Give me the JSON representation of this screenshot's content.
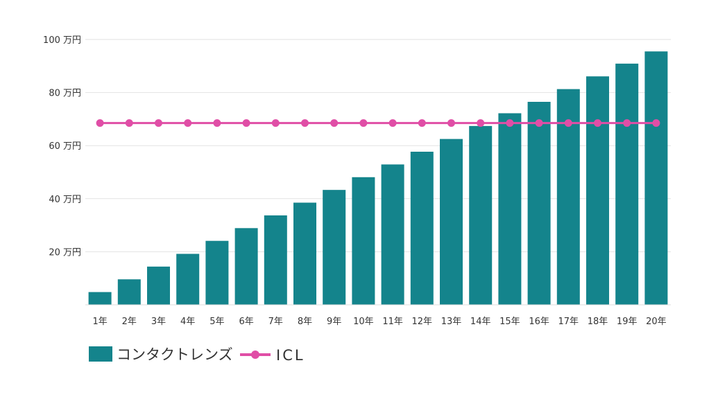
{
  "chart_data": {
    "type": "bar",
    "title": "",
    "xlabel": "",
    "ylabel": "",
    "ylim": [
      0,
      100
    ],
    "yticks": [
      20,
      40,
      60,
      80,
      100
    ],
    "ytick_labels": [
      "20 万円",
      "40 万円",
      "60 万円",
      "80 万円",
      "100 万円"
    ],
    "grid": true,
    "legend_position": "bottom-left",
    "categories": [
      "1年",
      "2年",
      "3年",
      "4年",
      "5年",
      "6年",
      "7年",
      "8年",
      "9年",
      "10年",
      "11年",
      "12年",
      "13年",
      "14年",
      "15年",
      "16年",
      "17年",
      "18年",
      "19年",
      "20年"
    ],
    "series": [
      {
        "name": "コンタクトレンズ",
        "kind": "bar",
        "color": "#14848c",
        "values": [
          4.8,
          9.6,
          14.4,
          19.2,
          24.1,
          28.9,
          33.7,
          38.5,
          43.3,
          48.1,
          52.9,
          57.7,
          62.5,
          67.4,
          72.2,
          76.5,
          81.3,
          86.1,
          90.9,
          95.5
        ]
      },
      {
        "name": "ICL",
        "kind": "line",
        "color": "#e04ea6",
        "values": [
          68.5,
          68.5,
          68.5,
          68.5,
          68.5,
          68.5,
          68.5,
          68.5,
          68.5,
          68.5,
          68.5,
          68.5,
          68.5,
          68.5,
          68.5,
          68.5,
          68.5,
          68.5,
          68.5,
          68.5
        ]
      }
    ]
  }
}
